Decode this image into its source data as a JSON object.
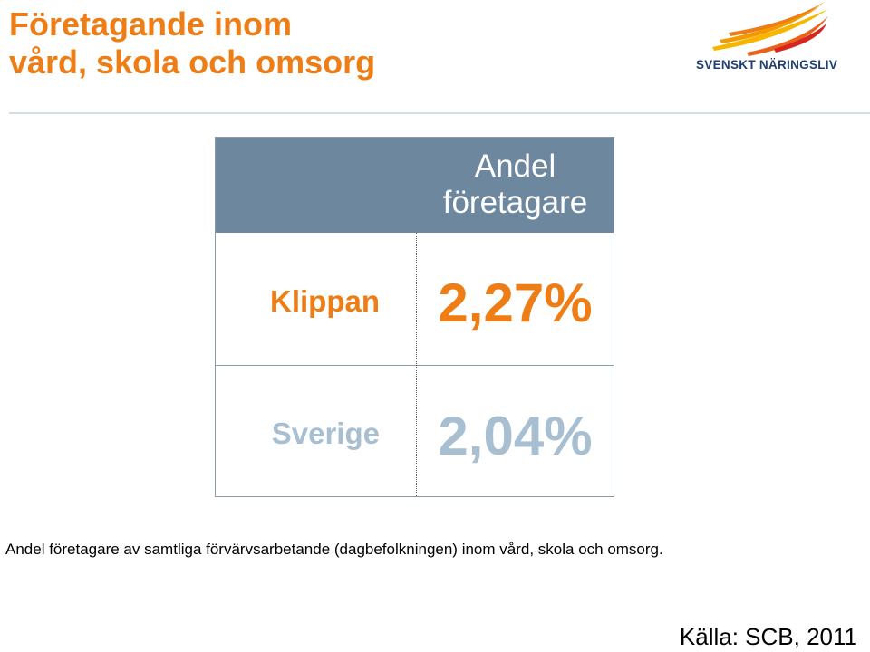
{
  "slide": {
    "title_line1": "Företagande inom",
    "title_line2": "vård, skola och omsorg",
    "logo_text": "SVENSKT NÄRINGSLIV",
    "caption": "Andel företagare av samtliga förvärvsarbetande (dagbefolkningen) inom vård, skola och omsorg.",
    "source": "Källa: SCB, 2011"
  },
  "table": {
    "header_line1": "Andel",
    "header_line2": "företagare",
    "rows": [
      {
        "label": "Klippan",
        "value": "2,27%"
      },
      {
        "label": "Sverige",
        "value": "2,04%"
      }
    ]
  },
  "colors": {
    "accent_orange": "#ee7d16",
    "header_blue": "#6c879e",
    "muted_blue": "#a7bfd1",
    "logo_navy": "#1f3d6e"
  }
}
